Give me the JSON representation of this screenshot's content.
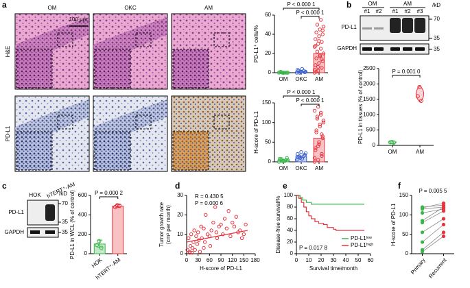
{
  "figure": {
    "panel_letters": [
      "a",
      "b",
      "c",
      "d",
      "e",
      "f"
    ],
    "micrographs": {
      "columns": [
        "OM",
        "OKC",
        "AM"
      ],
      "rows": [
        "H&E",
        "PD-L1"
      ],
      "scale_bar": "100 μm"
    },
    "blot_b": {
      "groups": [
        "OM",
        "AM"
      ],
      "lanes": [
        "#1",
        "#2",
        "#1",
        "#2",
        "#3"
      ],
      "bands": [
        "PD-L1",
        "GAPDH"
      ],
      "unit": "/kD",
      "markers": [
        70,
        35,
        35
      ]
    },
    "blot_c": {
      "lanes": [
        "HOK",
        "hTERT⁺-AM"
      ],
      "bands": [
        "PD-L1",
        "GAPDH"
      ],
      "unit": "/kD",
      "markers": [
        70,
        35,
        35
      ]
    }
  },
  "chart_data": [
    {
      "type": "dot_bar",
      "ylabel": "PD-L1⁺ cells/%",
      "categories": [
        "OM",
        "OKC",
        "AM"
      ],
      "colors": [
        "#39b54a",
        "#3a5fcd",
        "#e8323c"
      ],
      "points": [
        [
          0,
          0,
          0,
          0.5,
          0,
          0,
          1,
          0,
          0,
          0.3
        ],
        [
          0,
          1,
          2,
          3,
          1,
          0.5,
          2,
          4,
          1,
          0
        ],
        [
          0,
          2,
          5,
          8,
          10,
          12,
          15,
          18,
          20,
          22,
          25,
          27,
          30,
          32,
          35,
          38,
          40,
          42,
          45,
          48,
          50,
          55,
          3,
          6,
          14,
          28,
          33,
          44,
          1,
          17
        ]
      ],
      "bar_values": [
        0.3,
        1.5,
        20
      ],
      "ylim": [
        0,
        60
      ],
      "yticks": [
        0,
        20,
        40,
        60
      ],
      "annotations": [
        "P < 0.000 1",
        "P < 0.000 1"
      ]
    },
    {
      "type": "dot_bar",
      "ylabel": "H-score of PD-L1",
      "categories": [
        "OM",
        "OKC",
        "AM"
      ],
      "colors": [
        "#39b54a",
        "#3a5fcd",
        "#e8323c"
      ],
      "points": [
        [
          0,
          2,
          5,
          8,
          3,
          10,
          6,
          1,
          4,
          7
        ],
        [
          5,
          10,
          15,
          20,
          25,
          18,
          12,
          8,
          22,
          14
        ],
        [
          0,
          5,
          15,
          30,
          45,
          60,
          75,
          90,
          100,
          110,
          120,
          130,
          140,
          20,
          35,
          50,
          65,
          80,
          95,
          105,
          115,
          125,
          10,
          40,
          70
        ]
      ],
      "bar_values": [
        5,
        15,
        60
      ],
      "ylim": [
        0,
        150
      ],
      "yticks": [
        0,
        50,
        100,
        150
      ],
      "annotations": [
        "P < 0.000 1",
        "P < 0.000 1"
      ]
    },
    {
      "type": "violin",
      "ylabel": "PD-L1 in tissues (% of control)",
      "categories": [
        "OM",
        "AM"
      ],
      "colors": [
        "#39b54a",
        "#e8323c"
      ],
      "points": [
        [
          100,
          110,
          90
        ],
        [
          1600,
          1900,
          1450
        ]
      ],
      "ylim": [
        0,
        2500
      ],
      "yticks": [
        0,
        500,
        1000,
        1500,
        2000,
        2500
      ],
      "annotations": [
        "P = 0.001 0"
      ]
    },
    {
      "type": "bar",
      "ylabel": "PD-L1 in WCL (% of control)",
      "categories": [
        "HOK",
        "hTERT⁺-AM"
      ],
      "colors": [
        "#39b54a",
        "#e8323c"
      ],
      "values": [
        100,
        490
      ],
      "errors": [
        40,
        15
      ],
      "points": [
        [
          90,
          130,
          60
        ],
        [
          480,
          500,
          495
        ]
      ],
      "ylim": [
        0,
        600
      ],
      "yticks": [
        0,
        200,
        400,
        600
      ],
      "annotations": [
        "P = 0.000 2"
      ]
    },
    {
      "type": "scatter",
      "ylabel": [
        "Tumor growth rate",
        "(cm³ per month)"
      ],
      "xlabel": "H-score of PD-L1",
      "color": "#e8323c",
      "x": [
        2,
        5,
        8,
        10,
        12,
        15,
        18,
        20,
        22,
        25,
        28,
        30,
        32,
        35,
        38,
        40,
        45,
        48,
        50,
        55,
        60,
        62,
        65,
        70,
        75,
        78,
        80,
        85,
        90,
        95,
        100,
        105,
        110,
        115,
        120,
        125,
        130,
        135,
        140,
        145,
        150,
        155,
        8,
        15,
        45
      ],
      "values": [
        2,
        8,
        1,
        4,
        10,
        3,
        6,
        12,
        2,
        9,
        5,
        11,
        7,
        1,
        14,
        8,
        13,
        6,
        20,
        10,
        9,
        4,
        12,
        16,
        24,
        11,
        8,
        14,
        15,
        10,
        18,
        13,
        22,
        9,
        16,
        14,
        19,
        11,
        12,
        8,
        10,
        15,
        0.5,
        0.5,
        3
      ],
      "fit": {
        "x": [
          0,
          160
        ],
        "y": [
          6,
          12
        ]
      },
      "xlim": [
        0,
        180
      ],
      "xticks": [
        0,
        30,
        60,
        90,
        120,
        150,
        180
      ],
      "ylim": [
        0,
        30
      ],
      "yticks": [
        0,
        10,
        20,
        30
      ],
      "annotations": [
        "R = 0.430 5",
        "P = 0.000 6"
      ]
    },
    {
      "type": "step",
      "ylabel": "Disease-free survival/%",
      "xlabel": "Survival time/month",
      "series": [
        {
          "name": "PD-L1ˡᵒʷ",
          "color": "#39b54a",
          "x": [
            0,
            3,
            5,
            8,
            12,
            20,
            55
          ],
          "values": [
            100,
            96,
            92,
            88,
            85,
            85,
            85
          ]
        },
        {
          "name": "PD-L1ʰⁱᵍʰ",
          "color": "#e8323c",
          "x": [
            0,
            2,
            4,
            6,
            8,
            10,
            12,
            15,
            18,
            22,
            25,
            30,
            32,
            35,
            55
          ],
          "values": [
            100,
            95,
            88,
            80,
            72,
            65,
            60,
            55,
            52,
            50,
            45,
            42,
            40,
            40,
            40
          ]
        }
      ],
      "xlim": [
        0,
        60
      ],
      "xticks": [
        0,
        10,
        20,
        30,
        40,
        50,
        60
      ],
      "ylim": [
        0,
        100
      ],
      "yticks": [
        0,
        20,
        40,
        60,
        80,
        100
      ],
      "annotations": [
        "P = 0.017 8"
      ],
      "legend": "lower right"
    },
    {
      "type": "paired",
      "ylabel": "H-score of PD-L1",
      "categories": [
        "Primary",
        "Recurrent"
      ],
      "colors": [
        "#39b54a",
        "#e8323c"
      ],
      "points": [
        [
          120,
          118,
          115,
          105,
          85,
          80,
          55,
          30,
          10,
          5
        ],
        [
          125,
          130,
          120,
          115,
          120,
          110,
          90,
          75,
          55,
          45
        ]
      ],
      "ylim": [
        0,
        150
      ],
      "yticks": [
        0,
        50,
        100,
        150
      ],
      "annotations": [
        "P = 0.005 5"
      ]
    }
  ]
}
